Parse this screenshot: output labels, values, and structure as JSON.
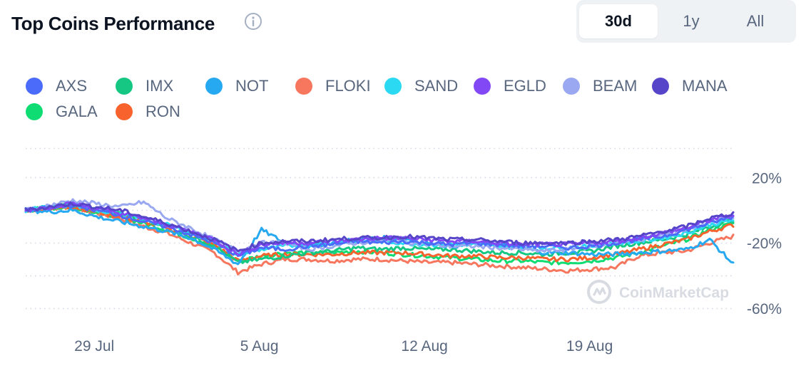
{
  "header": {
    "title": "Top Coins Performance",
    "info_icon": "info-circle-icon"
  },
  "range_tabs": [
    {
      "label": "30d",
      "active": true
    },
    {
      "label": "1y",
      "active": false
    },
    {
      "label": "All",
      "active": false
    }
  ],
  "watermark": {
    "text": "CoinMarketCap",
    "icon": "coinmarketcap-logo-icon"
  },
  "chart_data": {
    "type": "line",
    "x_tick_labels": [
      "29 Jul",
      "5 Aug",
      "12 Aug",
      "19 Aug"
    ],
    "y_tick_labels": [
      "20%",
      "-20%",
      "-60%"
    ],
    "y_ticks": [
      20,
      -20,
      -60
    ],
    "ylim": [
      -63,
      38
    ],
    "y_unit": "%",
    "x_range_days": [
      0,
      30
    ],
    "x_tick_days": [
      3,
      10,
      17,
      24
    ],
    "grid": true,
    "legend_position": "top-left",
    "series": [
      {
        "name": "AXS",
        "color": "#4b6cfb",
        "values": [
          0,
          1,
          3,
          0,
          -3,
          -7,
          -10,
          -15,
          -20,
          -28,
          -23,
          -24,
          -22,
          -21,
          -19,
          -20,
          -19,
          -20,
          -21,
          -20,
          -21,
          -22,
          -22,
          -23,
          -22,
          -20,
          -18,
          -16,
          -12,
          -8,
          -4
        ]
      },
      {
        "name": "IMX",
        "color": "#16c784",
        "values": [
          0,
          2,
          4,
          1,
          -2,
          -6,
          -10,
          -16,
          -22,
          -32,
          -30,
          -28,
          -26,
          -25,
          -23,
          -24,
          -23,
          -24,
          -24,
          -25,
          -26,
          -26,
          -27,
          -26,
          -25,
          -22,
          -20,
          -18,
          -15,
          -10,
          -6
        ]
      },
      {
        "name": "NOT",
        "color": "#27a9f1",
        "values": [
          0,
          -1,
          0,
          -4,
          -7,
          -10,
          -13,
          -17,
          -24,
          -33,
          -12,
          -20,
          -22,
          -20,
          -18,
          -17,
          -17,
          -20,
          -22,
          -21,
          -21,
          -23,
          -26,
          -26,
          -27,
          -27,
          -26,
          -25,
          -24,
          -18,
          -33
        ]
      },
      {
        "name": "FLOKI",
        "color": "#f6765e",
        "values": [
          0,
          1,
          2,
          -2,
          -5,
          -10,
          -14,
          -20,
          -26,
          -38,
          -33,
          -30,
          -30,
          -31,
          -30,
          -30,
          -31,
          -32,
          -32,
          -33,
          -34,
          -35,
          -36,
          -37,
          -36,
          -35,
          -28,
          -26,
          -25,
          -20,
          -16
        ]
      },
      {
        "name": "SAND",
        "color": "#2bd9f2",
        "values": [
          0,
          2,
          3,
          0,
          -2,
          -6,
          -9,
          -14,
          -19,
          -27,
          -24,
          -22,
          -21,
          -20,
          -19,
          -19,
          -20,
          -21,
          -21,
          -21,
          -22,
          -23,
          -23,
          -23,
          -22,
          -20,
          -19,
          -17,
          -14,
          -9,
          -6
        ]
      },
      {
        "name": "EGLD",
        "color": "#8248f5",
        "values": [
          0,
          2,
          4,
          1,
          -2,
          -5,
          -9,
          -13,
          -18,
          -27,
          -21,
          -20,
          -20,
          -19,
          -18,
          -17,
          -17,
          -18,
          -19,
          -19,
          -20,
          -21,
          -21,
          -21,
          -20,
          -19,
          -17,
          -14,
          -11,
          -6,
          -3
        ]
      },
      {
        "name": "BEAM",
        "color": "#9aa8f2",
        "values": [
          0,
          3,
          6,
          4,
          2,
          5,
          -5,
          -11,
          -18,
          -25,
          -20,
          -20,
          -24,
          -22,
          -20,
          -19,
          -19,
          -21,
          -22,
          -22,
          -23,
          -24,
          -25,
          -24,
          -22,
          -20,
          -18,
          -15,
          -12,
          -7,
          -4
        ]
      },
      {
        "name": "MANA",
        "color": "#5645c8",
        "values": [
          0,
          2,
          4,
          2,
          0,
          -4,
          -8,
          -13,
          -18,
          -25,
          -20,
          -19,
          -19,
          -18,
          -17,
          -17,
          -16,
          -17,
          -18,
          -18,
          -19,
          -20,
          -20,
          -20,
          -19,
          -18,
          -16,
          -13,
          -10,
          -5,
          -2
        ]
      },
      {
        "name": "GALA",
        "color": "#0fdd74",
        "values": [
          0,
          1,
          2,
          -1,
          -4,
          -8,
          -12,
          -17,
          -22,
          -31,
          -28,
          -26,
          -26,
          -26,
          -25,
          -26,
          -27,
          -28,
          -29,
          -30,
          -31,
          -31,
          -32,
          -32,
          -31,
          -29,
          -26,
          -22,
          -18,
          -12,
          -8
        ]
      },
      {
        "name": "RON",
        "color": "#f7622d",
        "values": [
          0,
          1,
          2,
          -1,
          -4,
          -7,
          -11,
          -16,
          -21,
          -31,
          -28,
          -27,
          -27,
          -27,
          -26,
          -26,
          -26,
          -27,
          -28,
          -28,
          -29,
          -29,
          -30,
          -30,
          -29,
          -27,
          -24,
          -21,
          -18,
          -13,
          -9
        ]
      }
    ]
  }
}
